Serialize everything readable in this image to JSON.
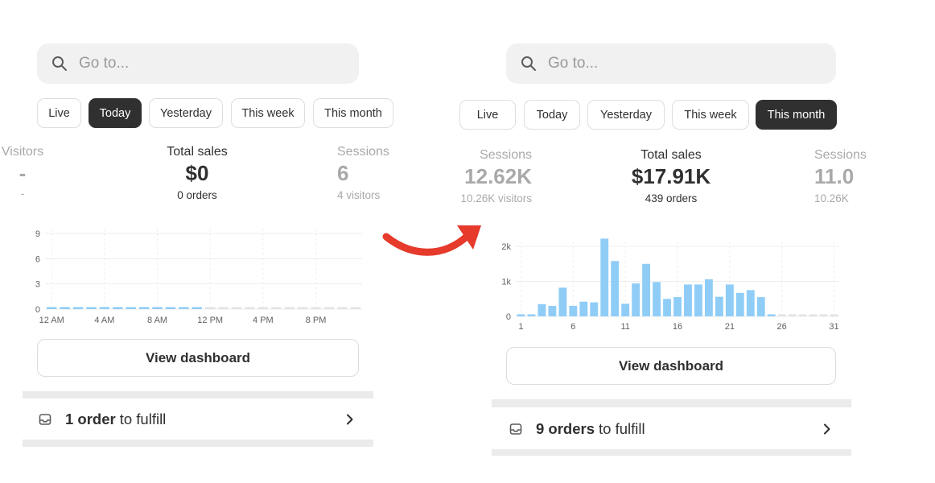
{
  "search_placeholder": "Go to...",
  "left": {
    "chips": [
      {
        "label": "Live",
        "active": false
      },
      {
        "label": "Today",
        "active": true
      },
      {
        "label": "Yesterday",
        "active": false
      },
      {
        "label": "This week",
        "active": false
      },
      {
        "label": "This month",
        "active": false
      }
    ],
    "metrics": [
      {
        "label": "Visitors",
        "value": "-",
        "sub": "-"
      },
      {
        "label": "Total sales",
        "value": "$0",
        "sub": "0 orders"
      },
      {
        "label": "Sessions",
        "value": "6",
        "sub": "4 visitors"
      }
    ],
    "view_dashboard": "View dashboard",
    "fulfill": {
      "count": "1 order",
      "suffix": "to fulfill"
    }
  },
  "right": {
    "chips": [
      {
        "label": "Live",
        "active": false
      },
      {
        "label": "Today",
        "active": false
      },
      {
        "label": "Yesterday",
        "active": false
      },
      {
        "label": "This week",
        "active": false
      },
      {
        "label": "This month",
        "active": true
      }
    ],
    "metrics": [
      {
        "label": "Sessions",
        "value": "12.62K",
        "sub": "10.26K visitors"
      },
      {
        "label": "Total sales",
        "value": "$17.91K",
        "sub": "439 orders"
      },
      {
        "label": "Sessions",
        "value": "11.0",
        "sub": "10.26K"
      }
    ],
    "view_dashboard": "View dashboard",
    "fulfill": {
      "count": "9 orders",
      "suffix": "to fulfill"
    }
  },
  "colors": {
    "bar": "#8fcdf7",
    "empty_bar": "#e3e3e3",
    "active_chip": "#303030",
    "arrow": "#e53a2c"
  },
  "chart_data": [
    {
      "type": "bar",
      "title": "",
      "x_tick_labels": [
        "12 AM",
        "4 AM",
        "8 AM",
        "12 PM",
        "4 PM",
        "8 PM"
      ],
      "y_tick_labels": [
        "0",
        "3",
        "6",
        "9"
      ],
      "ylim": [
        0,
        9
      ],
      "categories": [
        "0",
        "1",
        "2",
        "3",
        "4",
        "5",
        "6",
        "7",
        "8",
        "9",
        "10",
        "11",
        "12",
        "13",
        "14",
        "15",
        "16",
        "17",
        "18",
        "19",
        "20",
        "21",
        "22",
        "23"
      ],
      "values": [
        0,
        0,
        0,
        0,
        0,
        0,
        0,
        0,
        0,
        0,
        0,
        0,
        0,
        0,
        0,
        0,
        0,
        0,
        0,
        0,
        0,
        0,
        0,
        0
      ],
      "filled_until": 12,
      "grid": true
    },
    {
      "type": "bar",
      "title": "",
      "x_tick_labels": [
        "1",
        "6",
        "11",
        "16",
        "21",
        "26",
        "31"
      ],
      "y_tick_labels": [
        "0",
        "1k",
        "2k"
      ],
      "ylim": [
        0,
        2000
      ],
      "categories": [
        "1",
        "2",
        "3",
        "4",
        "5",
        "6",
        "7",
        "8",
        "9",
        "10",
        "11",
        "12",
        "13",
        "14",
        "15",
        "16",
        "17",
        "18",
        "19",
        "20",
        "21",
        "22",
        "23",
        "24",
        "25",
        "26",
        "27",
        "28",
        "29",
        "30",
        "31"
      ],
      "values": [
        30,
        40,
        350,
        300,
        820,
        300,
        420,
        400,
        2220,
        1580,
        360,
        940,
        1500,
        980,
        500,
        550,
        910,
        910,
        1060,
        560,
        910,
        670,
        750,
        550,
        50,
        0,
        0,
        0,
        0,
        0,
        0
      ],
      "filled_until": 25,
      "grid": true
    }
  ]
}
